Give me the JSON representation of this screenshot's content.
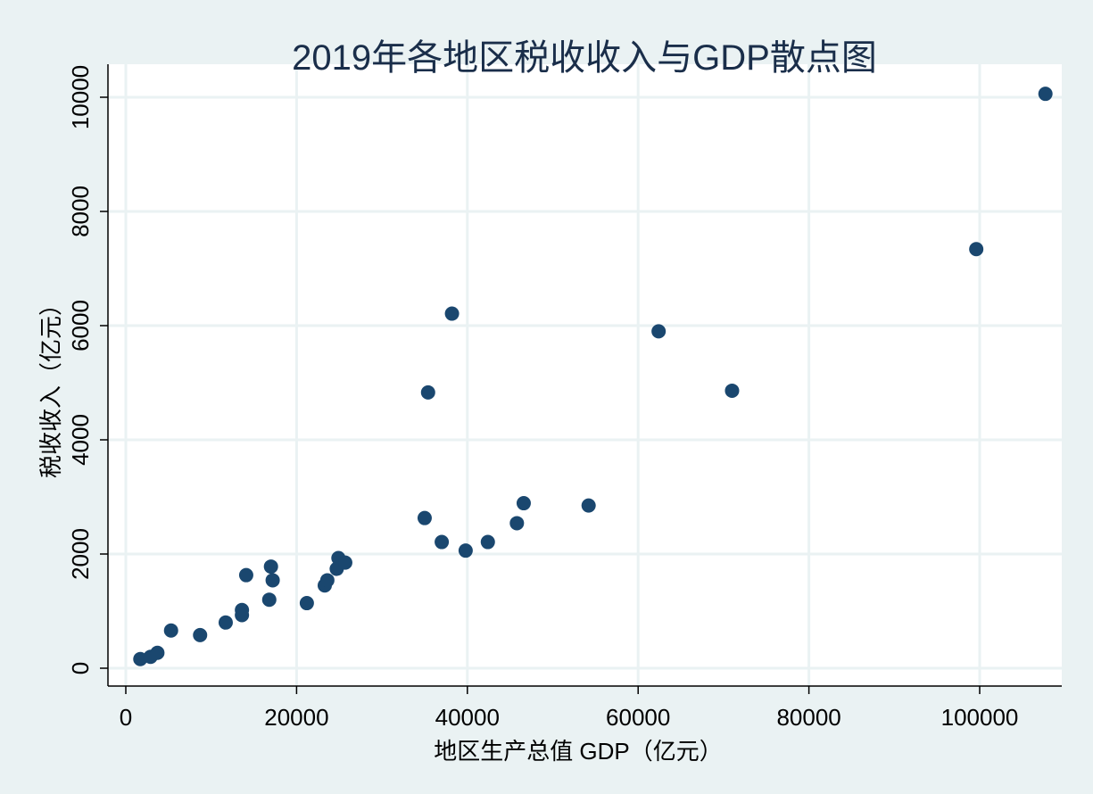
{
  "chart_data": {
    "type": "scatter",
    "title": "2019年各地区税收收入与GDP散点图",
    "xlabel": "地区生产总值 GDP（亿元）",
    "ylabel": "税收收入（亿元）",
    "xlim": [
      -2000,
      110000
    ],
    "ylim": [
      -300,
      10500
    ],
    "xticks": [
      "0",
      "20000",
      "40000",
      "60000",
      "80000",
      "100000"
    ],
    "xtick_values": [
      0,
      20000,
      40000,
      60000,
      80000,
      100000
    ],
    "yticks": [
      "0",
      "2000",
      "4000",
      "6000",
      "8000",
      "10000"
    ],
    "ytick_values": [
      0,
      2000,
      4000,
      6000,
      8000,
      10000
    ],
    "grid": true,
    "marker_color": "#1a476f",
    "points": [
      {
        "x": 1700,
        "y": 160
      },
      {
        "x": 2900,
        "y": 200
      },
      {
        "x": 3700,
        "y": 270
      },
      {
        "x": 5300,
        "y": 660
      },
      {
        "x": 8700,
        "y": 580
      },
      {
        "x": 11700,
        "y": 800
      },
      {
        "x": 13600,
        "y": 1020
      },
      {
        "x": 13600,
        "y": 930
      },
      {
        "x": 14100,
        "y": 1630
      },
      {
        "x": 16800,
        "y": 1200
      },
      {
        "x": 17000,
        "y": 1780
      },
      {
        "x": 17200,
        "y": 1540
      },
      {
        "x": 21200,
        "y": 1140
      },
      {
        "x": 23300,
        "y": 1450
      },
      {
        "x": 23600,
        "y": 1540
      },
      {
        "x": 24700,
        "y": 1740
      },
      {
        "x": 24900,
        "y": 1930
      },
      {
        "x": 25700,
        "y": 1850
      },
      {
        "x": 35000,
        "y": 2630
      },
      {
        "x": 35400,
        "y": 4830
      },
      {
        "x": 37000,
        "y": 2210
      },
      {
        "x": 38200,
        "y": 6210
      },
      {
        "x": 39800,
        "y": 2060
      },
      {
        "x": 42400,
        "y": 2210
      },
      {
        "x": 45800,
        "y": 2540
      },
      {
        "x": 46600,
        "y": 2890
      },
      {
        "x": 54200,
        "y": 2850
      },
      {
        "x": 62400,
        "y": 5900
      },
      {
        "x": 71000,
        "y": 4860
      },
      {
        "x": 99600,
        "y": 7340
      },
      {
        "x": 107700,
        "y": 10060
      }
    ]
  }
}
